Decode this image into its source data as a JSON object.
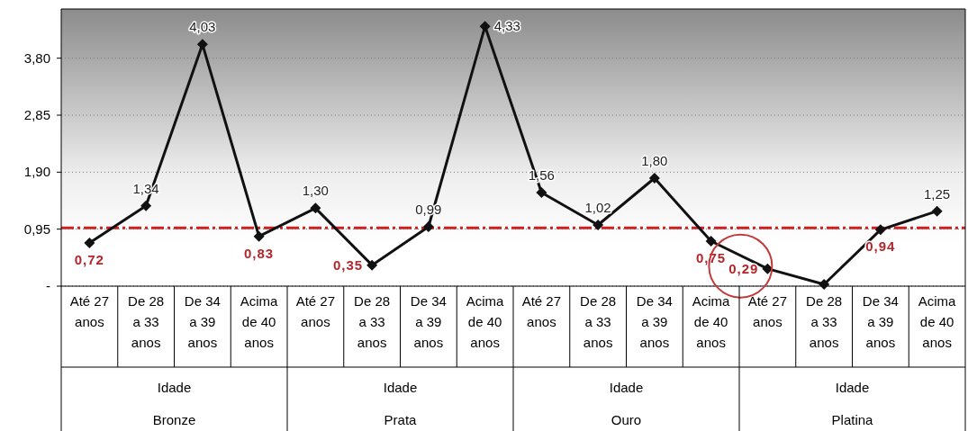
{
  "chart_data": {
    "type": "line",
    "categories": [
      "Até 27 anos",
      "De 28 a 33 anos",
      "De 34 a 39 anos",
      "Acima de 40 anos",
      "Até 27 anos",
      "De 28 a 33 anos",
      "De 34 a 39 anos",
      "Acima de 40 anos",
      "Até 27 anos",
      "De 28 a 33 anos",
      "De 34 a 39 anos",
      "Acima de 40 anos",
      "Até 27 anos",
      "De 28 a 33 anos",
      "De 34 a 39 anos",
      "Acima de 40 anos"
    ],
    "series": [
      {
        "color": "#111111",
        "values": [
          0.72,
          1.34,
          4.03,
          0.83,
          1.3,
          0.35,
          0.99,
          4.33,
          1.56,
          1.02,
          1.8,
          0.75,
          0.29,
          0.03,
          0.94,
          1.25
        ],
        "value_labels": [
          "0,72",
          "1,34",
          "4,03",
          "0,83",
          "1,30",
          "0,35",
          "0,99",
          "4,33",
          "1,56",
          "1,02",
          "1,80",
          "0,75",
          "0,29",
          null,
          "0,94",
          "1,25"
        ]
      }
    ],
    "ylim": [
      0,
      4.62
    ],
    "yticks": [
      {
        "value": 0,
        "label": "-"
      },
      {
        "value": 0.95,
        "label": "0,95"
      },
      {
        "value": 1.9,
        "label": "1,90"
      },
      {
        "value": 2.85,
        "label": "2,85"
      },
      {
        "value": 3.8,
        "label": "3,80"
      }
    ],
    "grid": "y",
    "marker": "diamond",
    "line_style": "solid",
    "ref_lines": [
      {
        "axis": "y",
        "value": 0.97,
        "label": null,
        "color": "#cc2222",
        "line_style": "dashed"
      }
    ],
    "annotations": [
      "Idade",
      "Bronze",
      "Idade",
      "Prata",
      "Idade",
      "Ouro",
      "Idade",
      "Platina"
    ]
  }
}
